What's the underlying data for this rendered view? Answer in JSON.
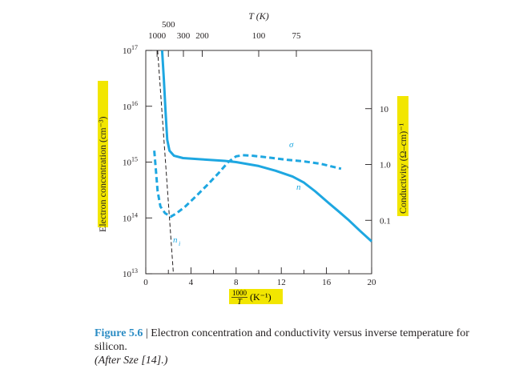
{
  "chart_data": {
    "type": "line",
    "x_label_numerator": "1000",
    "x_label_denominator": "T",
    "x_label_unit": "(K⁻¹)",
    "x_range": [
      0,
      20
    ],
    "x_ticks": [
      "0",
      "4",
      "8",
      "12",
      "16",
      "20"
    ],
    "top_axis_label": "T (K)",
    "top_ticks": [
      {
        "label": "1000",
        "T": 1000
      },
      {
        "label": "500",
        "T": 500
      },
      {
        "label": "300",
        "T": 300
      },
      {
        "label": "200",
        "T": 200
      },
      {
        "label": "100",
        "T": 100
      },
      {
        "label": "75",
        "T": 75
      }
    ],
    "y_left_label": "Electron concentration (cm⁻³)",
    "y_left_scale": "log",
    "y_left_range": [
      10000000000000.0,
      1e+17
    ],
    "y_left_ticks": [
      {
        "mantissa": "10",
        "exp": "13",
        "value": 10000000000000.0
      },
      {
        "mantissa": "10",
        "exp": "14",
        "value": 100000000000000.0
      },
      {
        "mantissa": "10",
        "exp": "15",
        "value": 1000000000000000.0
      },
      {
        "mantissa": "10",
        "exp": "16",
        "value": 1e+16
      },
      {
        "mantissa": "10",
        "exp": "17",
        "value": 1e+17
      }
    ],
    "y_right_label": "Conductivity (Ω–cm)⁻¹",
    "y_right_scale": "log",
    "y_right_ticks": [
      {
        "label": "0.1",
        "value": 0.1
      },
      {
        "label": "1.0",
        "value": 1.0
      },
      {
        "label": "10",
        "value": 10
      }
    ],
    "series": [
      {
        "name": "n",
        "style": "solid",
        "color": "#1ea7e1",
        "points": [
          [
            1.45,
            1e+17
          ],
          [
            1.6,
            3e+16
          ],
          [
            1.75,
            8000000000000000.0
          ],
          [
            1.9,
            2500000000000000.0
          ],
          [
            2.1,
            1600000000000000.0
          ],
          [
            2.5,
            1300000000000000.0
          ],
          [
            3.3,
            1180000000000000.0
          ],
          [
            5,
            1120000000000000.0
          ],
          [
            7,
            1050000000000000.0
          ],
          [
            8,
            1000000000000000.0
          ],
          [
            10,
            850000000000000.0
          ],
          [
            11.5,
            700000000000000.0
          ],
          [
            13,
            550000000000000.0
          ],
          [
            14,
            430000000000000.0
          ],
          [
            15,
            300000000000000.0
          ],
          [
            16,
            200000000000000.0
          ],
          [
            17,
            135000000000000.0
          ],
          [
            18,
            90000000000000.0
          ],
          [
            19,
            58000000000000.0
          ],
          [
            20,
            38000000000000.0
          ]
        ]
      },
      {
        "name": "σ",
        "style": "dashed",
        "color": "#1ea7e1",
        "points": [
          [
            0.75,
            1600000000000000.0
          ],
          [
            0.9,
            700000000000000.0
          ],
          [
            1.05,
            300000000000000.0
          ],
          [
            1.3,
            160000000000000.0
          ],
          [
            1.7,
            122000000000000.0
          ],
          [
            2.2,
            105000000000000.0
          ],
          [
            2.7,
            120000000000000.0
          ],
          [
            3.5,
            160000000000000.0
          ],
          [
            4.5,
            250000000000000.0
          ],
          [
            5.5,
            400000000000000.0
          ],
          [
            6.5,
            650000000000000.0
          ],
          [
            7.3,
            1000000000000000.0
          ],
          [
            8,
            1270000000000000.0
          ],
          [
            8.6,
            1330000000000000.0
          ],
          [
            9.5,
            1300000000000000.0
          ],
          [
            11,
            1200000000000000.0
          ],
          [
            12.5,
            1100000000000000.0
          ],
          [
            14,
            1030000000000000.0
          ],
          [
            15.5,
            930000000000000.0
          ],
          [
            17.3,
            760000000000000.0
          ]
        ]
      },
      {
        "name": "n_i",
        "style": "dashed",
        "color": "#231f20",
        "points": [
          [
            1.05,
            1e+17
          ],
          [
            2.45,
            10000000000000.0
          ]
        ]
      }
    ],
    "annotations": {
      "sigma": "σ",
      "n": "n",
      "ni_main": "n",
      "ni_sub": "i"
    }
  },
  "caption": {
    "figure_label": "Figure 5.6",
    "separator": " | ",
    "text": "Electron concentration and conductivity versus inverse temperature for silicon.",
    "source": "(After Sze [14].)"
  },
  "colors": {
    "curve": "#1ea7e1",
    "highlight": "#f2e600",
    "caption_label": "#2b8cc4",
    "ink": "#231f20"
  }
}
